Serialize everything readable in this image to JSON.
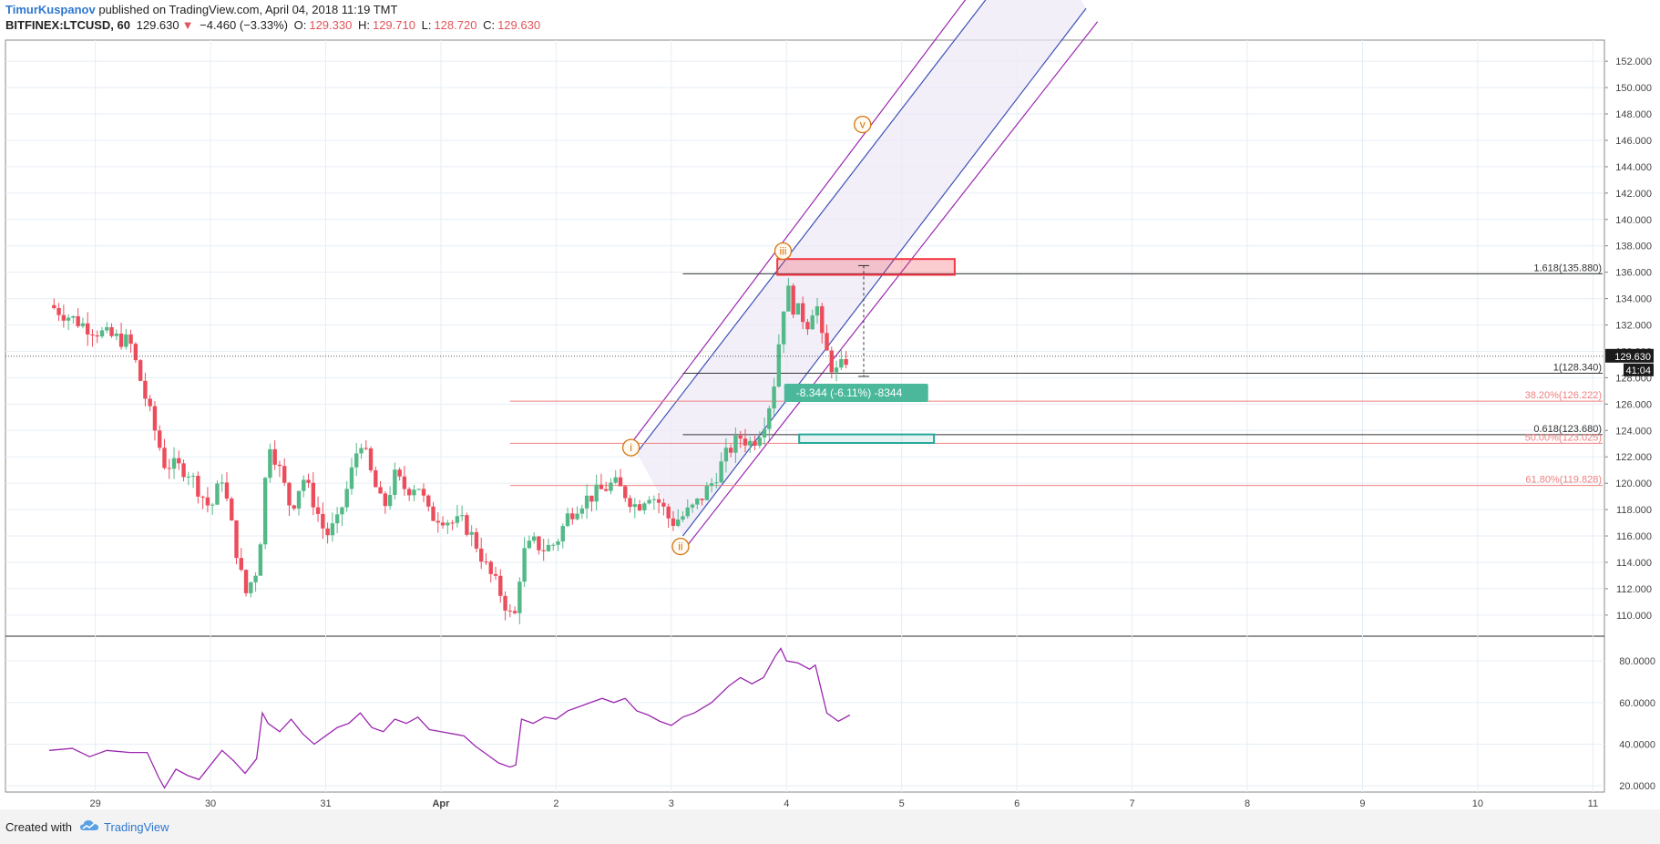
{
  "header": {
    "author": "TimurKuspanov",
    "published_text": "published on TradingView.com, April 04, 2018 11:19 TMT",
    "symbol": "BITFINEX:LTCUSD, 60",
    "last": "129.630",
    "change": "−4.460 (−3.33%)",
    "open_label": "O:",
    "open": "129.330",
    "high_label": "H:",
    "high": "129.710",
    "low_label": "L:",
    "low": "128.720",
    "close_label": "C:",
    "close": "129.630"
  },
  "footer": {
    "created_with": "Created with",
    "brand": "TradingView"
  },
  "colors": {
    "up": "#53b987",
    "down": "#eb4d5c",
    "rsi": "#9c27b0",
    "channel_outer": "#9c27b0",
    "channel_inner": "#3f51b5",
    "fib": "#f08080",
    "wave": "#d4740c",
    "box_red": "#f23645",
    "box_teal": "#26a69a",
    "measure_bg": "#4bb89b"
  },
  "chart_data": {
    "type": "candlestick",
    "symbol": "BITFINEX:LTCUSD",
    "timeframe": "60",
    "x_tick_labels": [
      "29",
      "30",
      "31",
      "Apr",
      "2",
      "3",
      "4",
      "5",
      "6",
      "7",
      "8",
      "9",
      "10",
      "11"
    ],
    "x_tick_days": [
      29,
      30,
      31,
      32,
      33,
      34,
      35,
      36,
      37,
      38,
      39,
      40,
      41,
      42
    ],
    "y_ticks": [
      "110.000",
      "112.000",
      "114.000",
      "116.000",
      "118.000",
      "120.000",
      "122.000",
      "124.000",
      "126.000",
      "128.000",
      "130.000",
      "132.000",
      "134.000",
      "136.000",
      "138.000",
      "140.000",
      "142.000",
      "144.000",
      "146.000",
      "148.000",
      "150.000",
      "152.000"
    ],
    "ylim": [
      108.4,
      153.6
    ],
    "last_price_label": "129.630",
    "countdown_label": "41:04",
    "close_points": [
      [
        28.6,
        133.5
      ],
      [
        28.9,
        132.0
      ],
      [
        29.1,
        131.2
      ],
      [
        29.3,
        130.7
      ],
      [
        29.45,
        126.0
      ],
      [
        29.6,
        121.5
      ],
      [
        29.8,
        121.0
      ],
      [
        30.0,
        118.0
      ],
      [
        30.1,
        120.5
      ],
      [
        30.2,
        116.0
      ],
      [
        30.3,
        111.5
      ],
      [
        30.4,
        113.5
      ],
      [
        30.45,
        117.0
      ],
      [
        30.5,
        123.5
      ],
      [
        30.6,
        121.0
      ],
      [
        30.7,
        118.0
      ],
      [
        30.8,
        120.5
      ],
      [
        30.9,
        118.5
      ],
      [
        31.0,
        116.0
      ],
      [
        31.1,
        117.0
      ],
      [
        31.2,
        120.0
      ],
      [
        31.3,
        123.5
      ],
      [
        31.4,
        120.5
      ],
      [
        31.5,
        118.0
      ],
      [
        31.6,
        120.5
      ],
      [
        31.7,
        119.5
      ],
      [
        31.8,
        120.0
      ],
      [
        31.9,
        117.5
      ],
      [
        32.0,
        117.5
      ],
      [
        32.1,
        117.0
      ],
      [
        32.2,
        117.0
      ],
      [
        32.3,
        115.5
      ],
      [
        32.4,
        113.5
      ],
      [
        32.5,
        112.0
      ],
      [
        32.6,
        110.0
      ],
      [
        32.65,
        110.0
      ],
      [
        32.7,
        114.5
      ],
      [
        32.8,
        115.5
      ],
      [
        32.9,
        115.0
      ],
      [
        33.0,
        115.5
      ],
      [
        33.1,
        117.5
      ],
      [
        33.2,
        118.5
      ],
      [
        33.3,
        119.0
      ],
      [
        33.4,
        119.5
      ],
      [
        33.5,
        120.0
      ],
      [
        33.6,
        119.2
      ],
      [
        33.7,
        118.2
      ],
      [
        33.8,
        119.3
      ],
      [
        33.9,
        118.5
      ],
      [
        34.0,
        117.0
      ],
      [
        34.1,
        117.5
      ],
      [
        34.2,
        118.2
      ],
      [
        34.35,
        120.0
      ],
      [
        34.5,
        122.5
      ],
      [
        34.6,
        123.5
      ],
      [
        34.7,
        123.0
      ],
      [
        34.8,
        124.5
      ],
      [
        34.85,
        126.0
      ],
      [
        34.9,
        128.0
      ],
      [
        34.95,
        132.0
      ],
      [
        35.0,
        135.0
      ],
      [
        35.05,
        133.5
      ],
      [
        35.1,
        133.0
      ],
      [
        35.2,
        132.0
      ],
      [
        35.25,
        134.5
      ],
      [
        35.3,
        131.0
      ],
      [
        35.4,
        128.7
      ],
      [
        35.45,
        128.3
      ],
      [
        35.5,
        129.3
      ],
      [
        35.55,
        129.6
      ]
    ],
    "rsi": {
      "ylim": [
        17,
        91
      ],
      "y_ticks": [
        "20.0000",
        "40.0000",
        "60.0000",
        "80.0000"
      ],
      "points": [
        [
          28.6,
          37
        ],
        [
          28.8,
          38
        ],
        [
          28.95,
          34
        ],
        [
          29.1,
          37
        ],
        [
          29.3,
          36
        ],
        [
          29.45,
          36
        ],
        [
          29.55,
          24
        ],
        [
          29.6,
          19
        ],
        [
          29.7,
          28
        ],
        [
          29.8,
          25
        ],
        [
          29.9,
          23
        ],
        [
          30.0,
          30
        ],
        [
          30.1,
          37
        ],
        [
          30.2,
          32
        ],
        [
          30.3,
          26
        ],
        [
          30.4,
          33
        ],
        [
          30.45,
          55
        ],
        [
          30.5,
          50
        ],
        [
          30.6,
          46
        ],
        [
          30.7,
          52
        ],
        [
          30.8,
          45
        ],
        [
          30.9,
          40
        ],
        [
          31.0,
          44
        ],
        [
          31.1,
          48
        ],
        [
          31.2,
          50
        ],
        [
          31.3,
          55
        ],
        [
          31.4,
          48
        ],
        [
          31.5,
          46
        ],
        [
          31.6,
          52
        ],
        [
          31.7,
          50
        ],
        [
          31.8,
          53
        ],
        [
          31.9,
          47
        ],
        [
          32.0,
          46
        ],
        [
          32.1,
          45
        ],
        [
          32.2,
          44
        ],
        [
          32.3,
          39
        ],
        [
          32.4,
          35
        ],
        [
          32.5,
          31
        ],
        [
          32.6,
          29
        ],
        [
          32.65,
          30
        ],
        [
          32.7,
          52
        ],
        [
          32.8,
          50
        ],
        [
          32.9,
          53
        ],
        [
          33.0,
          52
        ],
        [
          33.1,
          56
        ],
        [
          33.2,
          58
        ],
        [
          33.3,
          60
        ],
        [
          33.4,
          62
        ],
        [
          33.5,
          60
        ],
        [
          33.6,
          62
        ],
        [
          33.7,
          56
        ],
        [
          33.8,
          54
        ],
        [
          33.9,
          51
        ],
        [
          34.0,
          49
        ],
        [
          34.1,
          53
        ],
        [
          34.2,
          55
        ],
        [
          34.35,
          60
        ],
        [
          34.5,
          68
        ],
        [
          34.6,
          72
        ],
        [
          34.7,
          69
        ],
        [
          34.8,
          72
        ],
        [
          34.85,
          77
        ],
        [
          34.9,
          82
        ],
        [
          34.95,
          86
        ],
        [
          35.0,
          80
        ],
        [
          35.1,
          79
        ],
        [
          35.2,
          76
        ],
        [
          35.25,
          78
        ],
        [
          35.35,
          55
        ],
        [
          35.45,
          51
        ],
        [
          35.55,
          54
        ]
      ]
    },
    "fib_levels": [
      {
        "label": "1.618(135.880)",
        "price": 135.88,
        "x_start": 34.1
      },
      {
        "label": "1(128.340)",
        "price": 128.34,
        "x_start": 34.1
      },
      {
        "label": "0.618(123.680)",
        "price": 123.68,
        "x_start": 34.1
      },
      {
        "label": "38.20%(126.222)",
        "price": 126.222,
        "x_start": 32.6
      },
      {
        "label": "50.00%(123.025)",
        "price": 123.025,
        "x_start": 32.6
      },
      {
        "label": "61.80%(119.828)",
        "price": 119.828,
        "x_start": 32.6
      }
    ],
    "wave_labels": [
      {
        "text": "i",
        "day": 33.65,
        "price": 122.7
      },
      {
        "text": "ii",
        "day": 34.08,
        "price": 115.2
      },
      {
        "text": "iii",
        "day": 34.97,
        "price": 137.6
      },
      {
        "text": "v",
        "day": 35.66,
        "price": 147.2
      }
    ],
    "measure_label": "-8.344 (-6.11%) -8344",
    "measure": {
      "day": 35.67,
      "price_top": 136.5,
      "price_bottom": 128.1
    },
    "red_zone": {
      "day_start": 34.92,
      "day_end": 36.46,
      "price_top": 137.0,
      "price_bottom": 135.8
    },
    "teal_zone": {
      "day_start": 35.11,
      "day_end": 36.28,
      "price_top": 123.7,
      "price_bottom": 123.05
    },
    "channel": {
      "outer_upper": [
        [
          33.65,
          123.0
        ],
        [
          37.1,
          163.0
        ]
      ],
      "inner_upper": [
        [
          33.7,
          122.3
        ],
        [
          37.2,
          162.0
        ]
      ],
      "inner_lower": [
        [
          34.1,
          116.0
        ],
        [
          37.6,
          156.0
        ]
      ],
      "outer_lower": [
        [
          34.15,
          115.4
        ],
        [
          37.7,
          155.0
        ]
      ]
    }
  }
}
